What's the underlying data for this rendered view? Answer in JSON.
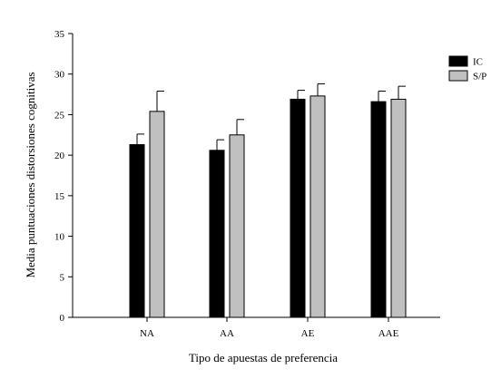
{
  "chart_data": {
    "type": "bar",
    "title": "",
    "xlabel": "Tipo de apuestas de preferencia",
    "ylabel": "Media puntuaciones distorsiones cognitivas",
    "categories": [
      "NA",
      "AA",
      "AE",
      "AAE"
    ],
    "ylim": [
      0,
      35
    ],
    "yticks": [
      0,
      5,
      10,
      15,
      20,
      25,
      30,
      35
    ],
    "series": [
      {
        "name": "IC",
        "color": "#000000",
        "values": [
          21.3,
          20.6,
          26.9,
          26.6
        ],
        "errors": [
          1.3,
          1.3,
          1.1,
          1.3
        ]
      },
      {
        "name": "S/P",
        "color": "#c0c0c0",
        "values": [
          25.4,
          22.5,
          27.3,
          26.9
        ],
        "errors": [
          2.5,
          1.9,
          1.5,
          1.6
        ]
      }
    ],
    "error_bars": "upper",
    "grid": false,
    "legend_position": "top-right"
  }
}
